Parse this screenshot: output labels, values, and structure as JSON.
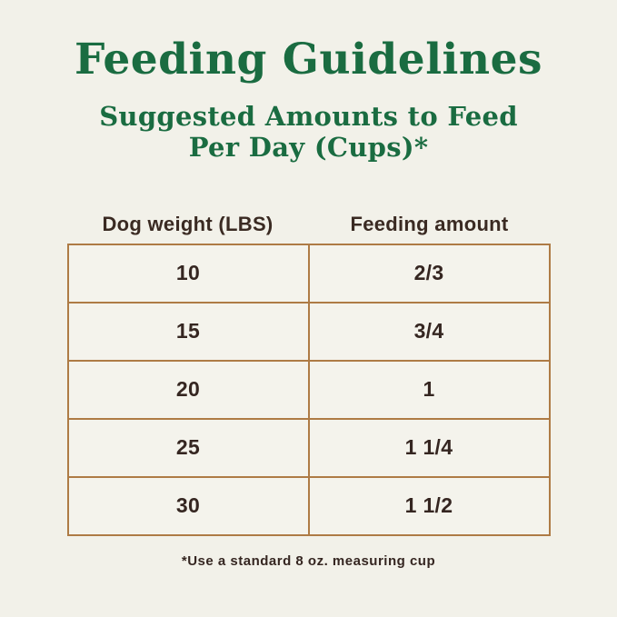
{
  "header": {
    "title": "Feeding Guidelines",
    "subtitle_line1": "Suggested Amounts to Feed",
    "subtitle_line2": "Per Day (Cups)*"
  },
  "table": {
    "columns": [
      "Dog weight (LBS)",
      "Feeding amount"
    ],
    "rows": [
      {
        "weight": "10",
        "amount": "2/3"
      },
      {
        "weight": "15",
        "amount": "3/4"
      },
      {
        "weight": "20",
        "amount": "1"
      },
      {
        "weight": "25",
        "amount": "1 1/4"
      },
      {
        "weight": "30",
        "amount": "1 1/2"
      }
    ]
  },
  "footer": {
    "note": "*Use a standard 8 oz. measuring cup"
  },
  "colors": {
    "background": "#f2f1e9",
    "heading_green": "#1a6c41",
    "table_border": "#ae7b45",
    "text_dark": "#352621"
  },
  "chart_data": {
    "type": "table",
    "title": "Feeding Guidelines",
    "subtitle": "Suggested Amounts to Feed Per Day (Cups)*",
    "columns": [
      "Dog weight (LBS)",
      "Feeding amount"
    ],
    "rows": [
      [
        "10",
        "2/3"
      ],
      [
        "15",
        "3/4"
      ],
      [
        "20",
        "1"
      ],
      [
        "25",
        "1 1/4"
      ],
      [
        "30",
        "1 1/2"
      ]
    ],
    "footnote": "*Use a standard 8 oz. measuring cup",
    "units": {
      "weight": "pounds",
      "amount": "cups per day"
    }
  }
}
